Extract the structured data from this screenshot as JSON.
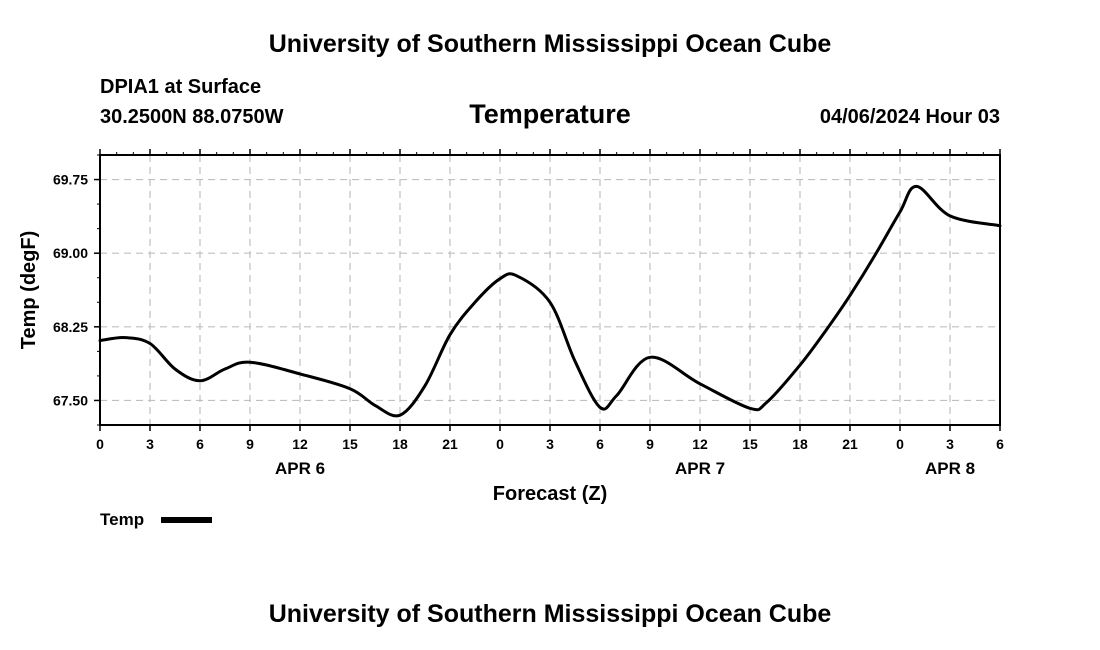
{
  "header": {
    "organization": "University of Southern Mississippi Ocean Cube",
    "station": "DPIA1 at Surface",
    "coordinates": "30.2500N  88.0750W",
    "run_time": "04/06/2024 Hour 03"
  },
  "footer": {
    "organization": "University of Southern Mississippi Ocean Cube"
  },
  "legend": {
    "label": "Temp"
  },
  "colors": {
    "line": "#000000",
    "grid": "#c0c0c0",
    "axis": "#000000"
  },
  "chart_data": {
    "type": "line",
    "title": "Temperature",
    "xlabel": "Forecast (Z)",
    "ylabel": "Temp (degF)",
    "xlim": [
      0,
      54
    ],
    "ylim": [
      67.25,
      70.0
    ],
    "grid": true,
    "legend_position": "bottom-left",
    "x_ticks": [
      0,
      3,
      6,
      9,
      12,
      15,
      18,
      21,
      24,
      27,
      30,
      33,
      36,
      39,
      42,
      45,
      48,
      51,
      54
    ],
    "x_tick_labels": [
      "0",
      "3",
      "6",
      "9",
      "12",
      "15",
      "18",
      "21",
      "0",
      "3",
      "6",
      "9",
      "12",
      "15",
      "18",
      "21",
      "0",
      "3",
      "6"
    ],
    "date_labels": [
      {
        "x": 12,
        "label": "APR 6"
      },
      {
        "x": 36,
        "label": "APR 7"
      },
      {
        "x": 51,
        "label": "APR 8"
      }
    ],
    "y_ticks": [
      67.5,
      68.25,
      69.0,
      69.75
    ],
    "y_tick_labels": [
      "67.50",
      "68.25",
      "69.00",
      "69.75"
    ],
    "series": [
      {
        "name": "Temp",
        "x": [
          0,
          1.5,
          3,
          4.5,
          6,
          7.5,
          9,
          12,
          15,
          16.5,
          18,
          19.5,
          21,
          22.5,
          24,
          25,
          27,
          28.5,
          30,
          31,
          33,
          36,
          39,
          40,
          42,
          43.5,
          45,
          46.5,
          48,
          49,
          51,
          54
        ],
        "values": [
          68.11,
          68.14,
          68.08,
          67.82,
          67.7,
          67.82,
          67.89,
          67.77,
          67.62,
          67.45,
          67.35,
          67.65,
          68.17,
          68.5,
          68.74,
          68.77,
          68.5,
          67.9,
          67.43,
          67.55,
          67.94,
          67.67,
          67.42,
          67.48,
          67.86,
          68.2,
          68.57,
          68.98,
          69.42,
          69.68,
          69.38,
          69.28
        ]
      }
    ]
  }
}
